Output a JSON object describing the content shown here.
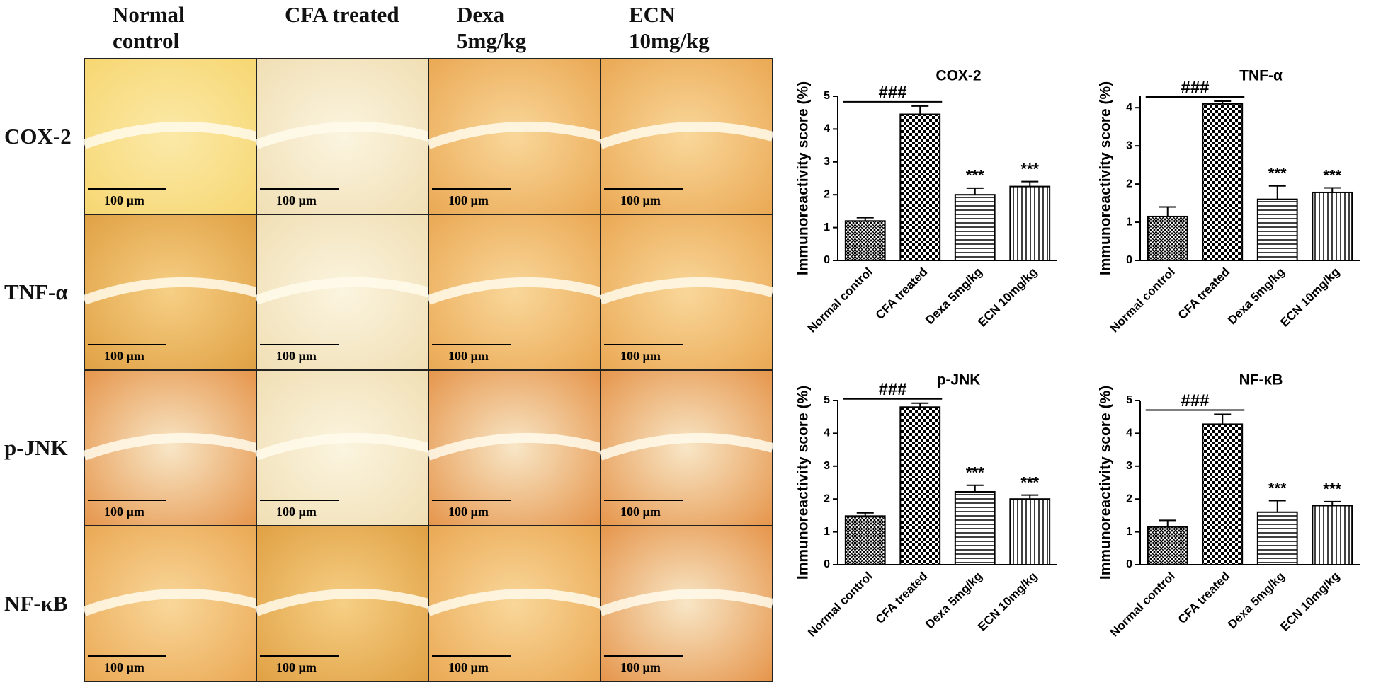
{
  "figure": {
    "columns": [
      "Normal control",
      "CFA treated",
      "Dexa 5mg/kg",
      "ECN 10mg/kg"
    ],
    "rows": [
      "COX-2",
      "TNF-α",
      "p-JNK",
      "NF-κB"
    ],
    "scale_bar": "100 µm"
  },
  "chart_data": [
    {
      "type": "bar",
      "title": "COX-2",
      "y_label": "Immunoreactivity score (%)",
      "categories": [
        "Normal control",
        "CFA treated",
        "Dexa 5mg/kg",
        "ECN 10mg/kg"
      ],
      "values": [
        1.2,
        4.45,
        2.0,
        2.25
      ],
      "errors": [
        0.1,
        0.25,
        0.2,
        0.15
      ],
      "patterns": [
        "crosshatch",
        "checker",
        "hlines",
        "vlines"
      ],
      "color": "#000000",
      "markers": [
        null,
        null,
        "***",
        "***"
      ],
      "bracket_label": "###",
      "ylim": [
        0,
        5
      ],
      "yticks": [
        0,
        1,
        2,
        3,
        4,
        5
      ]
    },
    {
      "type": "bar",
      "title": "TNF-α",
      "y_label": "Immunoreactivity score (%)",
      "categories": [
        "Normal control",
        "CFA treated",
        "Dexa 5mg/kg",
        "ECN 10mg/kg"
      ],
      "values": [
        1.15,
        4.1,
        1.6,
        1.78
      ],
      "errors": [
        0.25,
        0.07,
        0.35,
        0.12
      ],
      "patterns": [
        "crosshatch",
        "checker",
        "hlines",
        "vlines"
      ],
      "color": "#000000",
      "markers": [
        null,
        null,
        "***",
        "***"
      ],
      "bracket_label": "###",
      "ylim": [
        0,
        4.3
      ],
      "yticks": [
        0,
        1,
        2,
        3,
        4
      ]
    },
    {
      "type": "bar",
      "title": "p-JNK",
      "y_label": "Immunoreactivity score (%)",
      "categories": [
        "Normal control",
        "CFA treated",
        "Dexa 5mg/kg",
        "ECN 10mg/kg"
      ],
      "values": [
        1.48,
        4.8,
        2.22,
        2.0
      ],
      "errors": [
        0.1,
        0.12,
        0.2,
        0.12
      ],
      "patterns": [
        "crosshatch",
        "checker",
        "hlines",
        "vlines"
      ],
      "color": "#000000",
      "markers": [
        null,
        null,
        "***",
        "***"
      ],
      "bracket_label": "###",
      "ylim": [
        0,
        5
      ],
      "yticks": [
        0,
        1,
        2,
        3,
        4,
        5
      ]
    },
    {
      "type": "bar",
      "title": "NF-κB",
      "y_label": "Immunoreactivity score (%)",
      "categories": [
        "Normal control",
        "CFA treated",
        "Dexa 5mg/kg",
        "ECN 10mg/kg"
      ],
      "values": [
        1.15,
        4.28,
        1.6,
        1.8
      ],
      "errors": [
        0.2,
        0.3,
        0.35,
        0.12
      ],
      "patterns": [
        "crosshatch",
        "checker",
        "hlines",
        "vlines"
      ],
      "color": "#000000",
      "markers": [
        null,
        null,
        "***",
        "***"
      ],
      "bracket_label": "###",
      "ylim": [
        0,
        5
      ],
      "yticks": [
        0,
        1,
        2,
        3,
        4,
        5
      ]
    }
  ]
}
